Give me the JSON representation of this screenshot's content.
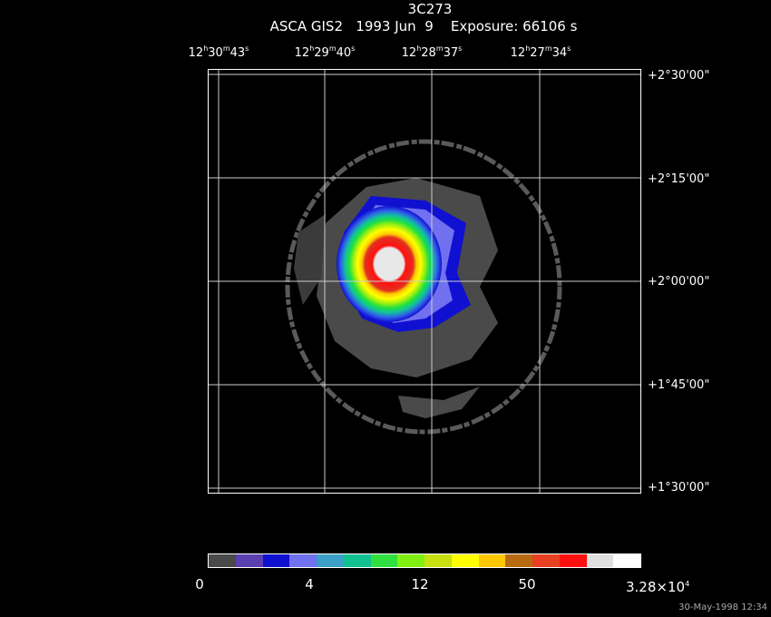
{
  "header": {
    "title": "3C273",
    "subtitle": "ASCA GIS2   1993 Jun  9    Exposure: 66106 s"
  },
  "ra_ticks": [
    {
      "h": "12",
      "m": "30",
      "s": "43"
    },
    {
      "h": "12",
      "m": "29",
      "s": "40"
    },
    {
      "h": "12",
      "m": "28",
      "s": "37"
    },
    {
      "h": "12",
      "m": "27",
      "s": "34"
    }
  ],
  "dec_ticks": [
    "+2°30'00\"",
    "+2°15'00\"",
    "+2°00'00\"",
    "+1°45'00\"",
    "+1°30'00\""
  ],
  "colorbar": {
    "colors": [
      "#4a4a4a",
      "#5a3fb0",
      "#1010d0",
      "#7070f0",
      "#3aa0c8",
      "#10c090",
      "#30e040",
      "#80f010",
      "#c8e010",
      "#ffff00",
      "#ffc800",
      "#b86a10",
      "#e84020",
      "#ff1010",
      "#e0e0e0",
      "#ffffff"
    ],
    "labels": [
      "0",
      "4",
      "12",
      "50",
      "3.28×10"
    ],
    "exponent": "4"
  },
  "footer": {
    "timestamp": "30-May-1998 12:34"
  }
}
